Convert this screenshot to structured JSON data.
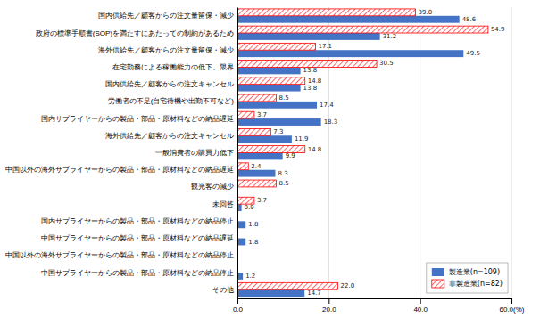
{
  "chart_data": {
    "type": "bar",
    "orientation": "horizontal",
    "categories": [
      "国内供給先／顧客からの注文量留保・減少",
      "政府の標準手順書(SOP)を満たすにあたっての制約があるため",
      "海外供給先／顧客からの注文量留保・減少",
      "在宅勤務による稼働能力の低下、限界",
      "国内供給先／顧客からの注文キャンセル",
      "労働者の不足(自宅待機や出勤不可など)",
      "国内サプライヤーからの製品・部品・原材料などの納品遅延",
      "海外供給先／顧客からの注文キャンセル",
      "一般消費者の購買力低下",
      "中国以外の海外サプライヤーからの製品・部品・原材料などの納品遅延",
      "観光客の減少",
      "未回答",
      "国内サプライヤーからの製品・部品・原材料などの納品停止",
      "中国サプライヤーからの製品・部品・原材料などの納品遅延",
      "中国以外の海外サプライヤーからの製品・部品・原材料などの納品停止",
      "中国サプライヤーからの製品・部品・原材料などの納品停止",
      "その他"
    ],
    "series": [
      {
        "name": "製造業(n=109)",
        "color": "#4472C4",
        "values": [
          48.6,
          31.2,
          49.5,
          13.8,
          13.8,
          17.4,
          18.3,
          11.9,
          9.9,
          8.3,
          0.0,
          0.9,
          1.8,
          1.8,
          0.0,
          1.2,
          14.7
        ],
        "value_labels": [
          "48.6",
          "31.2",
          "49.5",
          "13.8",
          "13.8",
          "17.4",
          "18.3",
          "11.9",
          "9.9",
          "8.3",
          null,
          "0.9",
          "1.8",
          "1.8",
          null,
          "1.2",
          "14.7"
        ]
      },
      {
        "name": "非製造業(n=82)",
        "color": "#FF0000",
        "values": [
          39.0,
          54.9,
          17.1,
          30.5,
          14.8,
          8.5,
          3.7,
          7.3,
          14.8,
          2.4,
          8.5,
          3.7,
          0.0,
          0.0,
          0.0,
          0.0,
          22.0
        ],
        "value_labels": [
          "39.0",
          "54.9",
          "17.1",
          "30.5",
          "14.8",
          "8.5",
          "3.7",
          "7.3",
          "14.8",
          "2.4",
          "8.5",
          "3.7",
          null,
          null,
          null,
          null,
          "22.0"
        ]
      }
    ],
    "xlim": [
      0,
      60
    ],
    "xticks": [
      {
        "value": 0,
        "label": "0.0"
      },
      {
        "value": 20,
        "label": "20.0"
      },
      {
        "value": 40,
        "label": "40.0"
      },
      {
        "value": 60,
        "label": "60.0(%)"
      }
    ],
    "grid": true,
    "legend": "lower right",
    "data_labels": true
  }
}
